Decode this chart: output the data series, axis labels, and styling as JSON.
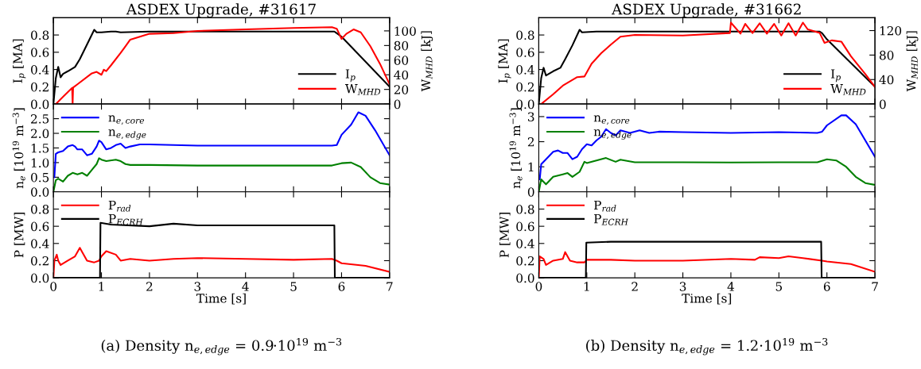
{
  "chart_data": [
    {
      "type": "line",
      "title": "ASDEX Upgrade, #31617",
      "ylabel": "I$_{p}$ [MA]",
      "y2label": "W$_{MHD}$ [kJ]",
      "xlim": [
        0,
        7
      ],
      "xticks": [
        0,
        1,
        2,
        3,
        4,
        5,
        6,
        7
      ],
      "ylim": [
        0,
        1.0
      ],
      "yticks": [
        {
          "value": 0,
          "label": "0.0"
        },
        0.2,
        0.4,
        0.6,
        0.8
      ],
      "y2lim": [
        0,
        118
      ],
      "y2ticks": [
        0,
        20,
        40,
        60,
        80,
        100
      ],
      "tick_labels": "y",
      "legend": "bottom right",
      "series": [
        {
          "name": "I$_{p}$",
          "color": "#000000",
          "x": [
            0,
            0.05,
            0.1,
            0.15,
            0.2,
            0.3,
            0.45,
            0.55,
            0.7,
            0.85,
            0.9,
            1.0,
            1.2,
            1.3,
            1.4,
            2,
            3,
            4,
            5,
            5.85,
            5.9,
            6.0,
            7.0
          ],
          "values": [
            0,
            0.3,
            0.43,
            0.31,
            0.35,
            0.38,
            0.43,
            0.52,
            0.69,
            0.86,
            0.83,
            0.83,
            0.84,
            0.84,
            0.83,
            0.84,
            0.84,
            0.84,
            0.84,
            0.84,
            0.82,
            0.78,
            0.2
          ]
        },
        {
          "name": "W$_{MHD}$",
          "color": "#ff0000",
          "axis": "y2",
          "x": [
            0.05,
            0.2,
            0.39,
            0.4,
            0.41,
            0.42,
            0.5,
            0.8,
            0.9,
            1.0,
            1.05,
            1.1,
            1.2,
            1.4,
            1.5,
            1.6,
            1.8,
            2.0,
            2.5,
            3,
            4,
            5,
            5.8,
            5.9,
            6.0,
            6.1,
            6.25,
            6.4,
            6.6,
            6.8,
            7.0
          ],
          "values": [
            0,
            10,
            22,
            0,
            23,
            23,
            27,
            42,
            44,
            40,
            47,
            45,
            53,
            70,
            79,
            88,
            92,
            96,
            97,
            100,
            102,
            104,
            105,
            103,
            89,
            96,
            102,
            98,
            79,
            55,
            27
          ]
        }
      ]
    },
    {
      "type": "line",
      "ylabel": "n$_{e}$ [10$^{19}$ m$^{−3}$]",
      "xlim": [
        0,
        7
      ],
      "xticks": [
        0,
        1,
        2,
        3,
        4,
        5,
        6,
        7
      ],
      "ylim": [
        0,
        3.0
      ],
      "yticks": [
        {
          "value": 0,
          "label": "0.0"
        },
        0.5,
        {
          "value": 1,
          "label": "1.0"
        },
        1.5,
        {
          "value": 2,
          "label": "2.0"
        },
        2.5
      ],
      "tick_labels": "y",
      "legend": "top left",
      "series": [
        {
          "name": "n$_{e,core}$",
          "color": "#0000ff",
          "x": [
            0.02,
            0.05,
            0.1,
            0.2,
            0.3,
            0.4,
            0.45,
            0.5,
            0.6,
            0.7,
            0.8,
            0.9,
            0.95,
            1.0,
            1.1,
            1.2,
            1.3,
            1.4,
            1.5,
            1.6,
            1.8,
            2,
            3,
            4,
            5,
            5.8,
            5.9,
            6.0,
            6.2,
            6.35,
            6.5,
            6.7,
            7.0
          ],
          "values": [
            0.5,
            1.3,
            1.35,
            1.4,
            1.55,
            1.6,
            1.55,
            1.45,
            1.45,
            1.25,
            1.3,
            1.55,
            1.75,
            1.7,
            1.45,
            1.5,
            1.6,
            1.65,
            1.5,
            1.55,
            1.62,
            1.62,
            1.58,
            1.58,
            1.58,
            1.58,
            1.6,
            1.95,
            2.3,
            2.72,
            2.6,
            2.1,
            1.25
          ]
        },
        {
          "name": "n$_{e,edge}$",
          "color": "#008000",
          "x": [
            0,
            0.05,
            0.1,
            0.2,
            0.3,
            0.4,
            0.5,
            0.6,
            0.7,
            0.8,
            0.9,
            0.95,
            1.0,
            1.1,
            1.3,
            1.4,
            1.5,
            1.6,
            2,
            3,
            4,
            5,
            5.8,
            6.0,
            6.2,
            6.4,
            6.6,
            6.8,
            7.0
          ],
          "values": [
            0,
            0.4,
            0.45,
            0.35,
            0.55,
            0.65,
            0.6,
            0.65,
            0.55,
            0.75,
            0.95,
            1.15,
            1.1,
            1.05,
            1.1,
            1.05,
            0.95,
            0.92,
            0.92,
            0.9,
            0.9,
            0.9,
            0.9,
            0.98,
            1.0,
            0.85,
            0.5,
            0.3,
            0.25
          ]
        }
      ]
    },
    {
      "type": "line",
      "xlabel": "Time [s]",
      "ylabel": "P [MW]",
      "xlim": [
        0,
        7
      ],
      "xticks": [
        0,
        1,
        2,
        3,
        4,
        5,
        6,
        7
      ],
      "ylim": [
        0,
        1.0
      ],
      "yticks": [
        {
          "value": 0,
          "label": "0.0"
        },
        0.2,
        0.4,
        0.6,
        0.8
      ],
      "legend": "top left",
      "annotations": [
        "(a) Density n$_{e,edge}$ = 0.9·10$^{19}$ m$^{−3}$"
      ],
      "series": [
        {
          "name": "P$_{rad}$",
          "color": "#ff0000",
          "x": [
            0,
            0.02,
            0.07,
            0.1,
            0.15,
            0.3,
            0.45,
            0.55,
            0.6,
            0.7,
            0.85,
            0.95,
            1.0,
            1.1,
            1.3,
            1.4,
            1.6,
            2,
            2.5,
            3,
            4,
            5,
            5.8,
            5.9,
            6.0,
            6.5,
            7.0
          ],
          "values": [
            0,
            0.2,
            0.27,
            0.2,
            0.15,
            0.2,
            0.25,
            0.35,
            0.3,
            0.2,
            0.18,
            0.2,
            0.25,
            0.31,
            0.27,
            0.2,
            0.22,
            0.2,
            0.22,
            0.23,
            0.22,
            0.21,
            0.22,
            0.2,
            0.17,
            0.14,
            0.07
          ]
        },
        {
          "name": "P$_{ECRH}$",
          "color": "#000000",
          "x": [
            0,
            0.97,
            0.98,
            1.2,
            2,
            2.5,
            3,
            4,
            5,
            5.85,
            5.86,
            7
          ],
          "values": [
            0,
            0,
            0.64,
            0.62,
            0.6,
            0.63,
            0.61,
            0.61,
            0.61,
            0.61,
            0,
            0
          ]
        }
      ]
    },
    {
      "type": "line",
      "title": "ASDEX Upgrade, #31662",
      "ylabel": "I$_{p}$ [MA]",
      "y2label": "W$_{MHD}$ [kJ]",
      "xlim": [
        0,
        7
      ],
      "xticks": [
        0,
        1,
        2,
        3,
        4,
        5,
        6,
        7
      ],
      "ylim": [
        0,
        1.0
      ],
      "yticks": [
        {
          "value": 0,
          "label": "0.0"
        },
        0.2,
        0.4,
        0.6,
        0.8
      ],
      "y2lim": [
        0,
        141
      ],
      "y2ticks": [
        0,
        40,
        80,
        120
      ],
      "tick_labels": "y",
      "legend": "bottom right",
      "series": [
        {
          "name": "I$_{p}$",
          "color": "#000000",
          "x": [
            0,
            0.05,
            0.1,
            0.15,
            0.3,
            0.45,
            0.55,
            0.7,
            0.85,
            0.9,
            1.2,
            2,
            3,
            4,
            5,
            5.85,
            5.9,
            6.0,
            7.0
          ],
          "values": [
            0,
            0.3,
            0.42,
            0.33,
            0.38,
            0.42,
            0.52,
            0.68,
            0.86,
            0.83,
            0.84,
            0.84,
            0.84,
            0.84,
            0.84,
            0.84,
            0.82,
            0.75,
            0.2
          ]
        },
        {
          "name": "W$_{MHD}$",
          "color": "#ff0000",
          "axis": "y2",
          "x": [
            0.05,
            0.3,
            0.5,
            0.8,
            0.95,
            1.1,
            1.3,
            1.5,
            1.7,
            2,
            3,
            3.98,
            4.0,
            4.2,
            4.3,
            4.45,
            4.6,
            4.75,
            4.9,
            5.05,
            5.2,
            5.35,
            5.5,
            5.6,
            5.85,
            5.95,
            6.1,
            6.3,
            6.5,
            6.8,
            7.0
          ],
          "values": [
            0,
            16,
            30,
            44,
            45,
            66,
            83,
            97,
            110,
            113,
            112,
            116,
            133,
            115,
            131,
            116,
            132,
            115,
            131,
            112,
            132,
            112,
            133,
            122,
            116,
            100,
            104,
            102,
            78,
            49,
            28
          ]
        }
      ]
    },
    {
      "type": "line",
      "ylabel": "n$_{e}$ [10$^{19}$ m$^{−3}$]",
      "xlim": [
        0,
        7
      ],
      "xticks": [
        0,
        1,
        2,
        3,
        4,
        5,
        6,
        7
      ],
      "ylim": [
        0,
        3.5
      ],
      "yticks": [
        0,
        1,
        2,
        3
      ],
      "tick_labels": "y",
      "legend": "top left",
      "series": [
        {
          "name": "n$_{e,core}$",
          "color": "#0000ff",
          "x": [
            0.02,
            0.05,
            0.15,
            0.3,
            0.4,
            0.5,
            0.6,
            0.7,
            0.8,
            0.9,
            1.0,
            1.1,
            1.2,
            1.3,
            1.4,
            1.5,
            1.6,
            1.7,
            1.9,
            2.1,
            2.3,
            2.5,
            3,
            4,
            5,
            5.8,
            5.9,
            6.0,
            6.3,
            6.4,
            6.6,
            7.0
          ],
          "values": [
            0.5,
            1.1,
            1.3,
            1.6,
            1.65,
            1.55,
            1.55,
            1.3,
            1.4,
            1.7,
            1.9,
            1.85,
            2.05,
            2.2,
            2.5,
            2.35,
            2.25,
            2.45,
            2.35,
            2.45,
            2.35,
            2.4,
            2.38,
            2.35,
            2.38,
            2.35,
            2.4,
            2.65,
            3.05,
            3.05,
            2.7,
            1.4
          ]
        },
        {
          "name": "n$_{e,edge}$",
          "color": "#008000",
          "x": [
            0,
            0.05,
            0.15,
            0.3,
            0.5,
            0.6,
            0.7,
            0.85,
            0.95,
            1.0,
            1.2,
            1.4,
            1.6,
            1.7,
            2,
            3,
            4,
            5,
            5.8,
            6.0,
            6.2,
            6.4,
            6.6,
            6.8,
            7.0
          ],
          "values": [
            0,
            0.5,
            0.3,
            0.6,
            0.7,
            0.75,
            0.6,
            0.8,
            1.2,
            1.15,
            1.25,
            1.35,
            1.2,
            1.28,
            1.18,
            1.18,
            1.17,
            1.18,
            1.18,
            1.3,
            1.25,
            1.0,
            0.6,
            0.35,
            0.28
          ]
        }
      ]
    },
    {
      "type": "line",
      "xlabel": "Time [s]",
      "ylabel": "P [MW]",
      "xlim": [
        0,
        7
      ],
      "xticks": [
        0,
        1,
        2,
        3,
        4,
        5,
        6,
        7
      ],
      "ylim": [
        0,
        1.0
      ],
      "yticks": [
        {
          "value": 0,
          "label": "0.0"
        },
        0.2,
        0.4,
        0.6,
        0.8
      ],
      "legend": "top left",
      "annotations": [
        "(b) Density n$_{e,edge}$ = 1.2·10$^{19}$ m$^{−3}$"
      ],
      "series": [
        {
          "name": "P$_{rad}$",
          "color": "#ff0000",
          "x": [
            0,
            0.02,
            0.1,
            0.15,
            0.3,
            0.5,
            0.55,
            0.65,
            0.8,
            0.95,
            1.0,
            1.5,
            2,
            3,
            4,
            4.5,
            4.6,
            5,
            5.2,
            5.5,
            5.9,
            6.0,
            6.5,
            7.0
          ],
          "values": [
            0,
            0.25,
            0.22,
            0.15,
            0.2,
            0.22,
            0.3,
            0.2,
            0.18,
            0.18,
            0.21,
            0.21,
            0.2,
            0.2,
            0.22,
            0.21,
            0.24,
            0.23,
            0.25,
            0.23,
            0.2,
            0.19,
            0.16,
            0.07
          ]
        },
        {
          "name": "P$_{ECRH}$",
          "color": "#000000",
          "x": [
            0,
            0.98,
            0.99,
            1.5,
            3,
            5.88,
            5.89,
            7
          ],
          "values": [
            0,
            0,
            0.41,
            0.42,
            0.42,
            0.42,
            0,
            0
          ]
        }
      ]
    }
  ]
}
